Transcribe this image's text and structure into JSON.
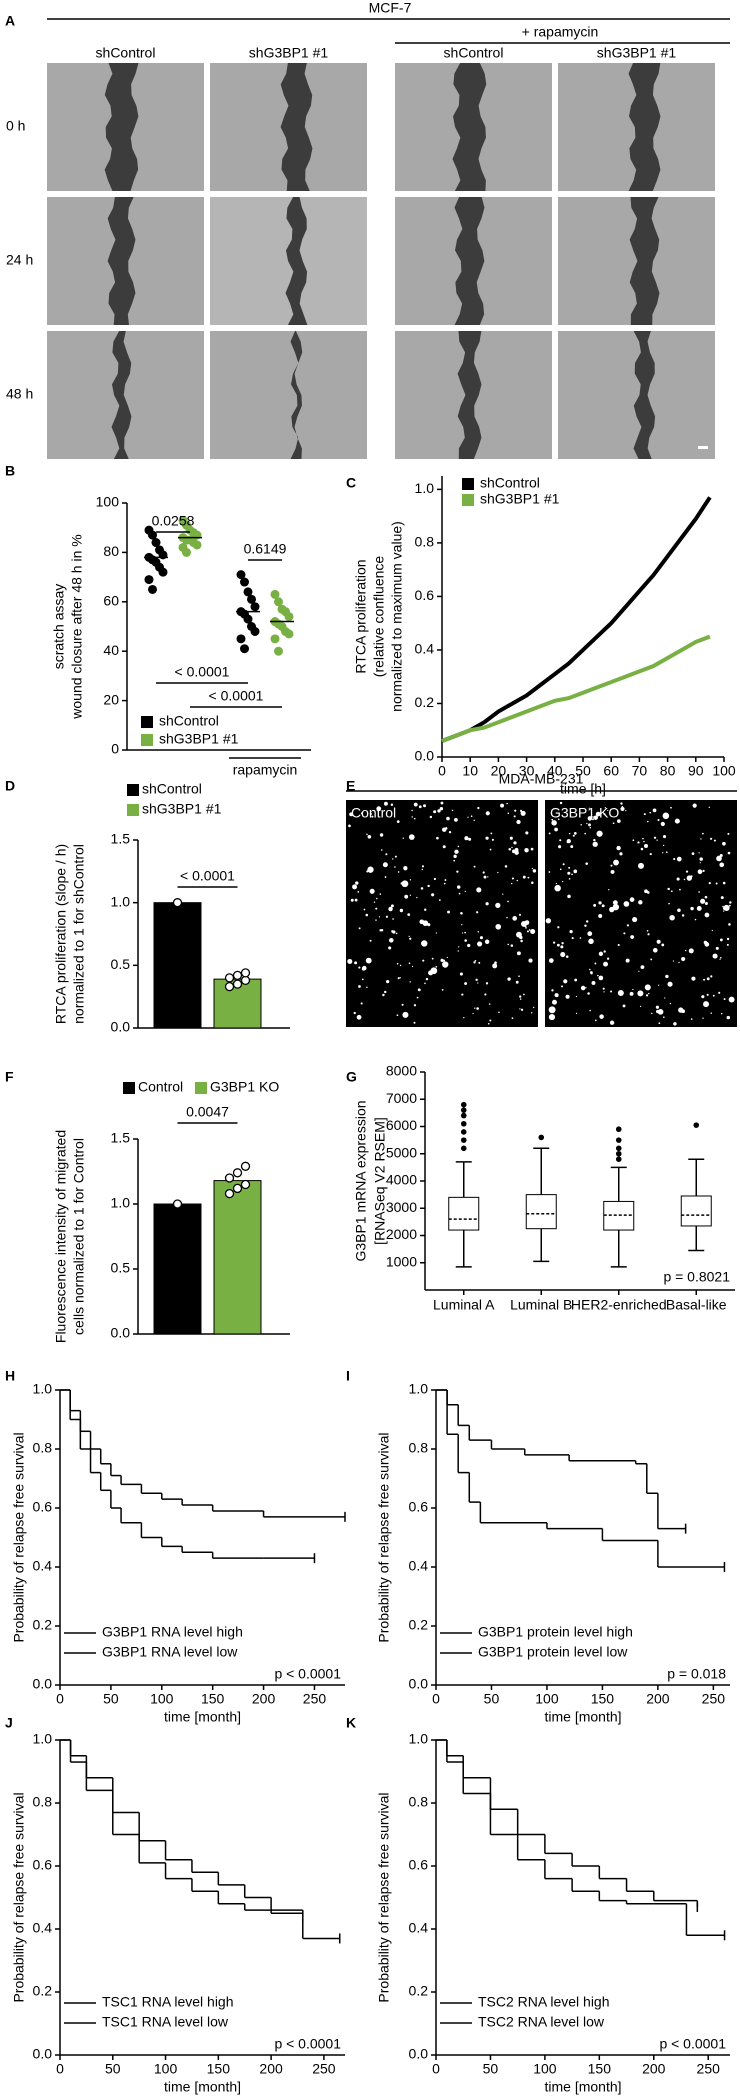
{
  "figure_a": {
    "panel_label": "A",
    "title": "MCF-7",
    "treatment": "+ rapamycin",
    "columns": [
      "shControl",
      "shG3BP1 #1",
      "shControl",
      "shG3BP1 #1"
    ],
    "rows": [
      "0 h",
      "24 h",
      "48 h"
    ]
  },
  "figure_e": {
    "panel_label": "E",
    "title": "MDA-MB-231",
    "columns": [
      "Control",
      "G3BP1 KO"
    ]
  },
  "chart_data": [
    {
      "panel_label": "B",
      "type": "dotplot",
      "ylabel": [
        "scratch assay",
        "wound closure after 48 h in %"
      ],
      "categories": [
        null,
        "rapamycin"
      ],
      "ylim": [
        0,
        100
      ],
      "yticks": [
        0,
        20,
        40,
        60,
        80,
        100
      ],
      "series": [
        {
          "name": "shControl",
          "color": "#000000",
          "values": [
            [
              89,
              87,
              84,
              81,
              79,
              78,
              77,
              76,
              74,
              72,
              69,
              65
            ],
            [
              71,
              68,
              64,
              61,
              58,
              56,
              55,
              53,
              50,
              48,
              45,
              41
            ]
          ],
          "means": [
            78,
            56
          ]
        },
        {
          "name": "shG3BP1 #1",
          "color": "#78b043",
          "values": [
            [
              93,
              91,
              89,
              88,
              87,
              86,
              85,
              85,
              84,
              83,
              82,
              80
            ],
            [
              63,
              60,
              57,
              56,
              54,
              52,
              51,
              50,
              48,
              47,
              45,
              40
            ]
          ],
          "means": [
            86,
            52
          ]
        }
      ],
      "annotations": [
        "0.0258",
        "0.6149",
        "< 0.0001",
        "< 0.0001"
      ]
    },
    {
      "panel_label": "C",
      "type": "line",
      "ylabel": [
        "RTCA proliferation",
        "(relative confluence",
        "normalized to maximum value)"
      ],
      "xlabel": "time [h]",
      "x": [
        0,
        5,
        10,
        15,
        20,
        25,
        30,
        35,
        40,
        45,
        50,
        55,
        60,
        65,
        70,
        75,
        80,
        85,
        90,
        95
      ],
      "xlim": [
        0,
        100
      ],
      "xticks": [
        0,
        10,
        20,
        30,
        40,
        50,
        60,
        70,
        80,
        90,
        100
      ],
      "ylim": [
        0,
        1.05
      ],
      "yticks": [
        {
          "value": 0,
          "label": "0.0"
        },
        0.2,
        0.4,
        0.6,
        0.8,
        {
          "value": 1,
          "label": "1.0"
        }
      ],
      "series": [
        {
          "name": "shControl",
          "color": "#000000",
          "values": [
            0.06,
            0.08,
            0.1,
            0.13,
            0.17,
            0.2,
            0.23,
            0.27,
            0.31,
            0.35,
            0.4,
            0.45,
            0.5,
            0.56,
            0.62,
            0.68,
            0.75,
            0.82,
            0.89,
            0.97
          ]
        },
        {
          "name": "shG3BP1 #1",
          "color": "#78b043",
          "values": [
            0.06,
            0.08,
            0.1,
            0.11,
            0.13,
            0.15,
            0.17,
            0.19,
            0.21,
            0.22,
            0.24,
            0.26,
            0.28,
            0.3,
            0.32,
            0.34,
            0.37,
            0.4,
            0.43,
            0.45
          ]
        }
      ]
    },
    {
      "panel_label": "D",
      "type": "bar",
      "ylabel": [
        "RTCA proliferation (slope / h)",
        "normalized to 1 for shControl"
      ],
      "ylim": [
        0,
        1.5
      ],
      "yticks": [
        {
          "value": 0,
          "label": "0.0"
        },
        0.5,
        {
          "value": 1,
          "label": "1.0"
        },
        1.5
      ],
      "series": [
        {
          "name": "shControl",
          "color": "#000000",
          "values": [
            1.0
          ],
          "points": [
            1.0
          ]
        },
        {
          "name": "shG3BP1 #1",
          "color": "#78b043",
          "values": [
            0.39
          ],
          "points": [
            0.33,
            0.35,
            0.38,
            0.4,
            0.42,
            0.44
          ]
        }
      ],
      "annotations": [
        "< 0.0001"
      ]
    },
    {
      "panel_label": "F",
      "type": "bar",
      "ylabel": [
        "Fluorescence intensity of migrated",
        "cells normalized to 1 for Control"
      ],
      "ylim": [
        0,
        1.5
      ],
      "yticks": [
        {
          "value": 0,
          "label": "0.0"
        },
        0.5,
        {
          "value": 1,
          "label": "1.0"
        },
        1.5
      ],
      "series": [
        {
          "name": "Control",
          "color": "#000000",
          "values": [
            1.0
          ],
          "points": [
            1.0
          ]
        },
        {
          "name": "G3BP1 KO",
          "color": "#78b043",
          "values": [
            1.18
          ],
          "points": [
            1.08,
            1.12,
            1.15,
            1.2,
            1.24,
            1.29
          ]
        }
      ],
      "annotations": [
        "0.0047"
      ]
    },
    {
      "panel_label": "G",
      "type": "box",
      "ylabel": [
        "G3BP1 mRNA expression",
        "[RNASeq V2 RSEM]"
      ],
      "categories": [
        "Luminal A",
        "Luminal B",
        "HER2-enriched",
        "Basal-like"
      ],
      "ylim": [
        0,
        8000
      ],
      "yticks": [
        1000,
        2000,
        3000,
        4000,
        5000,
        6000,
        7000,
        8000
      ],
      "boxes": [
        {
          "min": 850,
          "q1": 2200,
          "median": 2600,
          "q3": 3400,
          "max": 4700,
          "outliers": [
            5200,
            5500,
            5800,
            6100,
            6400,
            6600,
            6800
          ]
        },
        {
          "min": 1050,
          "q1": 2250,
          "median": 2800,
          "q3": 3500,
          "max": 5200,
          "outliers": [
            5600
          ]
        },
        {
          "min": 850,
          "q1": 2200,
          "median": 2750,
          "q3": 3250,
          "max": 4500,
          "outliers": [
            4800,
            5000,
            5200,
            5500,
            5900
          ]
        },
        {
          "min": 1450,
          "q1": 2350,
          "median": 2750,
          "q3": 3450,
          "max": 4800,
          "outliers": [
            6050
          ]
        }
      ],
      "annotations": [
        "p = 0.8021"
      ]
    },
    {
      "panel_label": "H",
      "type": "survival",
      "ylabel": [
        "Probability of relapse free survival"
      ],
      "xlabel": "time [month]",
      "xlim": [
        0,
        280
      ],
      "xticks": [
        0,
        50,
        100,
        150,
        200,
        250
      ],
      "ylim": [
        0,
        1
      ],
      "yticks": [
        {
          "value": 0,
          "label": "0.0"
        },
        0.2,
        0.4,
        0.6,
        0.8,
        {
          "value": 1,
          "label": "1.0"
        }
      ],
      "series": [
        {
          "name": "G3BP1 RNA level high",
          "color": "#000000",
          "x": [
            0,
            10,
            20,
            30,
            40,
            50,
            60,
            80,
            100,
            120,
            150,
            200,
            280
          ],
          "values": [
            1,
            0.93,
            0.86,
            0.8,
            0.75,
            0.71,
            0.68,
            0.65,
            0.63,
            0.61,
            0.59,
            0.57,
            0.57
          ]
        },
        {
          "name": "G3BP1 RNA level low",
          "color": "#78b043",
          "x": [
            0,
            10,
            20,
            30,
            40,
            50,
            60,
            80,
            100,
            120,
            150,
            200,
            250
          ],
          "values": [
            1,
            0.9,
            0.8,
            0.72,
            0.66,
            0.6,
            0.55,
            0.5,
            0.47,
            0.45,
            0.43,
            0.43,
            0.43
          ]
        }
      ],
      "annotations": [
        "p < 0.0001"
      ]
    },
    {
      "panel_label": "I",
      "type": "survival",
      "ylabel": [
        "Probability of relapse free survival"
      ],
      "xlabel": "time [month]",
      "xlim": [
        0,
        265
      ],
      "xticks": [
        0,
        50,
        100,
        150,
        200,
        250
      ],
      "ylim": [
        0,
        1
      ],
      "yticks": [
        {
          "value": 0,
          "label": "0.0"
        },
        0.2,
        0.4,
        0.6,
        0.8,
        {
          "value": 1,
          "label": "1.0"
        }
      ],
      "series": [
        {
          "name": "G3BP1 protein level high",
          "color": "#000000",
          "x": [
            0,
            10,
            20,
            30,
            50,
            80,
            120,
            180,
            190,
            200,
            225
          ],
          "values": [
            1,
            0.95,
            0.88,
            0.83,
            0.8,
            0.78,
            0.76,
            0.75,
            0.65,
            0.53,
            0.53
          ]
        },
        {
          "name": "G3BP1 protein level low",
          "color": "#78b043",
          "x": [
            0,
            10,
            20,
            30,
            40,
            100,
            150,
            200,
            260
          ],
          "values": [
            1,
            0.85,
            0.72,
            0.62,
            0.55,
            0.53,
            0.49,
            0.4,
            0.4
          ]
        }
      ],
      "annotations": [
        "p = 0.018"
      ]
    },
    {
      "panel_label": "J",
      "type": "survival",
      "ylabel": [
        "Probability of relapse free survival"
      ],
      "xlabel": "time [month]",
      "xlim": [
        0,
        270
      ],
      "xticks": [
        0,
        50,
        100,
        150,
        200,
        250
      ],
      "ylim": [
        0,
        1
      ],
      "yticks": [
        {
          "value": 0,
          "label": "0.0"
        },
        0.2,
        0.4,
        0.6,
        0.8,
        {
          "value": 1,
          "label": "1.0"
        }
      ],
      "series": [
        {
          "name": "TSC1 RNA level high",
          "color": "#000000",
          "x": [
            0,
            10,
            25,
            50,
            75,
            100,
            125,
            150,
            175,
            200,
            230
          ],
          "values": [
            1,
            0.95,
            0.88,
            0.77,
            0.68,
            0.62,
            0.58,
            0.54,
            0.5,
            0.46,
            0.44
          ]
        },
        {
          "name": "TSC1 RNA level low",
          "color": "#f28022",
          "x": [
            0,
            10,
            25,
            50,
            75,
            100,
            125,
            150,
            175,
            200,
            230,
            265
          ],
          "values": [
            1,
            0.93,
            0.84,
            0.7,
            0.61,
            0.56,
            0.52,
            0.48,
            0.46,
            0.45,
            0.37,
            0.37
          ]
        }
      ],
      "annotations": [
        "p < 0.0001"
      ]
    },
    {
      "panel_label": "K",
      "type": "survival",
      "ylabel": [
        "Probability of relapse free survival"
      ],
      "xlabel": "time [month]",
      "xlim": [
        0,
        270
      ],
      "xticks": [
        0,
        50,
        100,
        150,
        200,
        250
      ],
      "ylim": [
        0,
        1
      ],
      "yticks": [
        {
          "value": 0,
          "label": "0.0"
        },
        0.2,
        0.4,
        0.6,
        0.8,
        {
          "value": 1,
          "label": "1.0"
        }
      ],
      "series": [
        {
          "name": "TSC2 RNA level high",
          "color": "#000000",
          "x": [
            0,
            10,
            25,
            50,
            75,
            100,
            125,
            150,
            175,
            200,
            240
          ],
          "values": [
            1,
            0.95,
            0.88,
            0.78,
            0.7,
            0.64,
            0.6,
            0.56,
            0.52,
            0.49,
            0.47
          ]
        },
        {
          "name": "TSC2 RNA level low",
          "color": "#f28022",
          "x": [
            0,
            10,
            25,
            50,
            75,
            100,
            125,
            150,
            175,
            200,
            230,
            265
          ],
          "values": [
            1,
            0.93,
            0.83,
            0.7,
            0.62,
            0.56,
            0.52,
            0.49,
            0.48,
            0.48,
            0.38,
            0.38
          ]
        }
      ],
      "annotations": [
        "p < 0.0001"
      ]
    }
  ]
}
